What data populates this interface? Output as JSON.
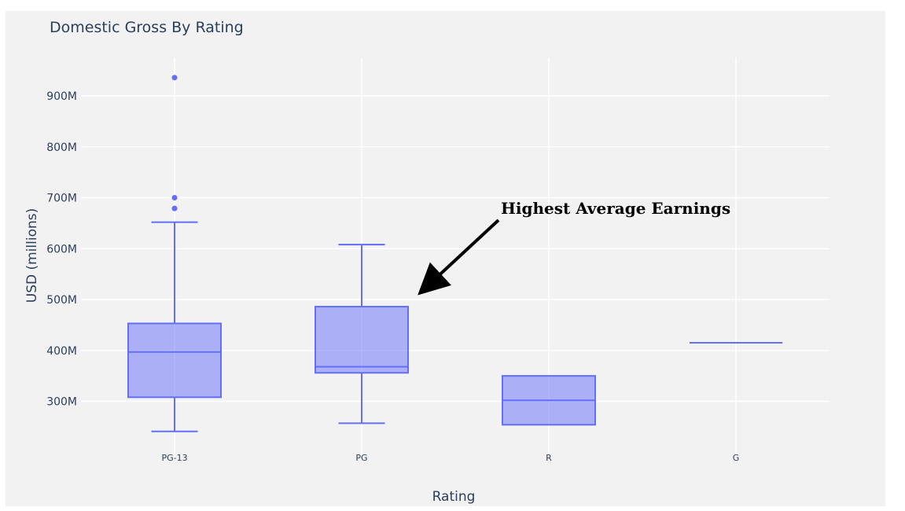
{
  "chart_data": {
    "type": "box",
    "title": "Domestic Gross By Rating",
    "xlabel": "Rating",
    "ylabel": "USD (millions)",
    "categories": [
      "PG-13",
      "PG",
      "R",
      "G"
    ],
    "y_ticks": [
      300,
      400,
      500,
      600,
      700,
      800,
      900
    ],
    "y_tick_labels": [
      "300M",
      "400M",
      "500M",
      "600M",
      "700M",
      "800M",
      "900M"
    ],
    "ylim": [
      200,
      975
    ],
    "grid": true,
    "color": "#636efa",
    "fill_color": "rgba(99,110,250,0.5)",
    "boxes": [
      {
        "category": "PG-13",
        "min": 241,
        "q1": 308,
        "median": 397,
        "q3": 453,
        "max": 652,
        "outliers": [
          679,
          700,
          936
        ]
      },
      {
        "category": "PG",
        "min": 257,
        "q1": 356,
        "median": 368,
        "q3": 486,
        "max": 608,
        "outliers": []
      },
      {
        "category": "R",
        "min": 254,
        "q1": 254,
        "median": 302,
        "q3": 350,
        "max": 350,
        "outliers": []
      },
      {
        "category": "G",
        "min": 415,
        "q1": 415,
        "median": 415,
        "q3": 415,
        "max": 415,
        "outliers": []
      }
    ],
    "annotations": [
      {
        "text": "Highest Average Earnings",
        "points_to": "PG"
      }
    ]
  }
}
